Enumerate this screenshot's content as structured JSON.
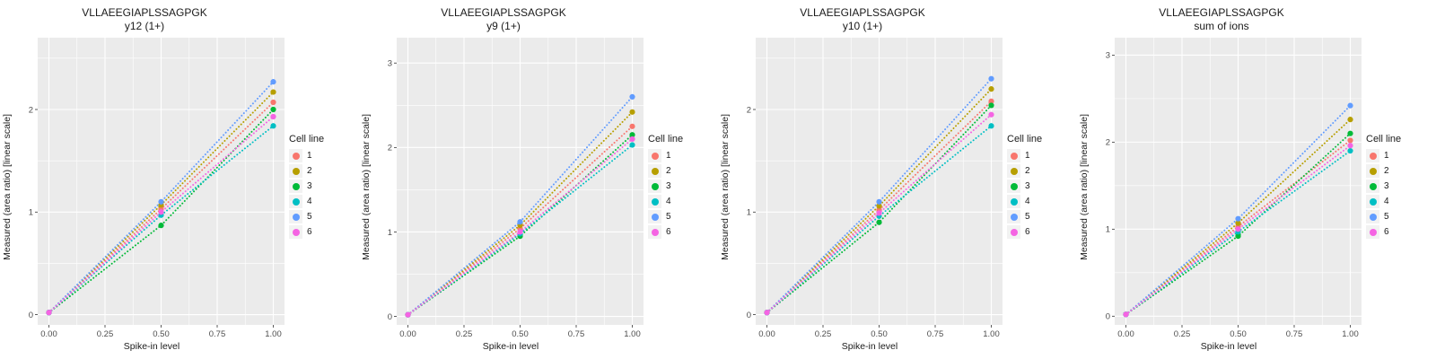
{
  "colors": {
    "panel_background": "#EBEBEB",
    "grid": "#FFFFFF",
    "tick_text": "#4D4D4D",
    "tick_mark": "#333333"
  },
  "chart_data": [
    {
      "type": "line",
      "title": "VLLAEEGIAPLSSAGPGK",
      "subtitle": "y12 (1+)",
      "xlabel": "Spike-in level",
      "ylabel": "Measured (area ratio) [linear scale]",
      "legend_title": "Cell line",
      "x": [
        0,
        0.5,
        1
      ],
      "xlim": [
        -0.05,
        1.05
      ],
      "ylim": [
        -0.1,
        2.7
      ],
      "xticks": [
        0,
        0.25,
        0.5,
        0.75,
        1
      ],
      "xtick_labels": [
        "0.00",
        "0.25",
        "0.50",
        "0.75",
        "1.00"
      ],
      "yticks": [
        0,
        1,
        2
      ],
      "ytick_labels": [
        "0",
        "1",
        "2"
      ],
      "xminor": [
        0.125,
        0.375,
        0.625,
        0.875
      ],
      "yminor": [
        0.5,
        1.5,
        2.5
      ],
      "series": [
        {
          "name": "1",
          "color": "#F8766D",
          "values": [
            0.02,
            1.03,
            2.07
          ]
        },
        {
          "name": "2",
          "color": "#B79F00",
          "values": [
            0.02,
            1.07,
            2.17
          ]
        },
        {
          "name": "3",
          "color": "#00BA38",
          "values": [
            0.02,
            0.87,
            2.0
          ]
        },
        {
          "name": "4",
          "color": "#00BFC4",
          "values": [
            0.02,
            0.97,
            1.84
          ]
        },
        {
          "name": "5",
          "color": "#619CFF",
          "values": [
            0.02,
            1.1,
            2.27
          ]
        },
        {
          "name": "6",
          "color": "#F564E3",
          "values": [
            0.02,
            1.0,
            1.93
          ]
        }
      ]
    },
    {
      "type": "line",
      "title": "VLLAEEGIAPLSSAGPGK",
      "subtitle": "y9 (1+)",
      "xlabel": "Spike-in level",
      "ylabel": "Measured (area ratio) [linear scale]",
      "legend_title": "Cell line",
      "x": [
        0,
        0.5,
        1
      ],
      "xlim": [
        -0.05,
        1.05
      ],
      "ylim": [
        -0.1,
        3.3
      ],
      "xticks": [
        0,
        0.25,
        0.5,
        0.75,
        1
      ],
      "xtick_labels": [
        "0.00",
        "0.25",
        "0.50",
        "0.75",
        "1.00"
      ],
      "yticks": [
        0,
        1,
        2,
        3
      ],
      "ytick_labels": [
        "0",
        "1",
        "2",
        "3"
      ],
      "xminor": [
        0.125,
        0.375,
        0.625,
        0.875
      ],
      "yminor": [
        0.5,
        1.5,
        2.5
      ],
      "series": [
        {
          "name": "1",
          "color": "#F8766D",
          "values": [
            0.02,
            1.04,
            2.25
          ]
        },
        {
          "name": "2",
          "color": "#B79F00",
          "values": [
            0.02,
            1.08,
            2.42
          ]
        },
        {
          "name": "3",
          "color": "#00BA38",
          "values": [
            0.02,
            0.95,
            2.15
          ]
        },
        {
          "name": "4",
          "color": "#00BFC4",
          "values": [
            0.02,
            0.98,
            2.03
          ]
        },
        {
          "name": "5",
          "color": "#619CFF",
          "values": [
            0.02,
            1.12,
            2.6
          ]
        },
        {
          "name": "6",
          "color": "#F564E3",
          "values": [
            0.02,
            1.0,
            2.1
          ]
        }
      ]
    },
    {
      "type": "line",
      "title": "VLLAEEGIAPLSSAGPGK",
      "subtitle": "y10 (1+)",
      "xlabel": "Spike-in level",
      "ylabel": "Measured (area ratio) [linear scale]",
      "legend_title": "Cell line",
      "x": [
        0,
        0.5,
        1
      ],
      "xlim": [
        -0.05,
        1.05
      ],
      "ylim": [
        -0.1,
        2.7
      ],
      "xticks": [
        0,
        0.25,
        0.5,
        0.75,
        1
      ],
      "xtick_labels": [
        "0.00",
        "0.25",
        "0.50",
        "0.75",
        "1.00"
      ],
      "yticks": [
        0,
        1,
        2
      ],
      "ytick_labels": [
        "0",
        "1",
        "2"
      ],
      "xminor": [
        0.125,
        0.375,
        0.625,
        0.875
      ],
      "yminor": [
        0.5,
        1.5,
        2.5
      ],
      "series": [
        {
          "name": "1",
          "color": "#F8766D",
          "values": [
            0.02,
            1.02,
            2.08
          ]
        },
        {
          "name": "2",
          "color": "#B79F00",
          "values": [
            0.02,
            1.06,
            2.2
          ]
        },
        {
          "name": "3",
          "color": "#00BA38",
          "values": [
            0.02,
            0.9,
            2.04
          ]
        },
        {
          "name": "4",
          "color": "#00BFC4",
          "values": [
            0.02,
            0.96,
            1.84
          ]
        },
        {
          "name": "5",
          "color": "#619CFF",
          "values": [
            0.02,
            1.1,
            2.3
          ]
        },
        {
          "name": "6",
          "color": "#F564E3",
          "values": [
            0.02,
            0.99,
            1.95
          ]
        }
      ]
    },
    {
      "type": "line",
      "title": "VLLAEEGIAPLSSAGPGK",
      "subtitle": "sum of ions",
      "xlabel": "Spike-in level",
      "ylabel": "Measured (area ratio) [linear scale]",
      "legend_title": "Cell line",
      "x": [
        0,
        0.5,
        1
      ],
      "xlim": [
        -0.05,
        1.05
      ],
      "ylim": [
        -0.1,
        3.2
      ],
      "xticks": [
        0,
        0.25,
        0.5,
        0.75,
        1
      ],
      "xtick_labels": [
        "0.00",
        "0.25",
        "0.50",
        "0.75",
        "1.00"
      ],
      "yticks": [
        0,
        1,
        2,
        3
      ],
      "ytick_labels": [
        "0",
        "1",
        "2",
        "3"
      ],
      "xminor": [
        0.125,
        0.375,
        0.625,
        0.875
      ],
      "yminor": [
        0.5,
        1.5,
        2.5
      ],
      "series": [
        {
          "name": "1",
          "color": "#F8766D",
          "values": [
            0.02,
            1.03,
            2.02
          ]
        },
        {
          "name": "2",
          "color": "#B79F00",
          "values": [
            0.02,
            1.07,
            2.26
          ]
        },
        {
          "name": "3",
          "color": "#00BA38",
          "values": [
            0.02,
            0.92,
            2.1
          ]
        },
        {
          "name": "4",
          "color": "#00BFC4",
          "values": [
            0.02,
            0.97,
            1.9
          ]
        },
        {
          "name": "5",
          "color": "#619CFF",
          "values": [
            0.02,
            1.12,
            2.42
          ]
        },
        {
          "name": "6",
          "color": "#F564E3",
          "values": [
            0.02,
            1.0,
            1.96
          ]
        }
      ]
    }
  ]
}
